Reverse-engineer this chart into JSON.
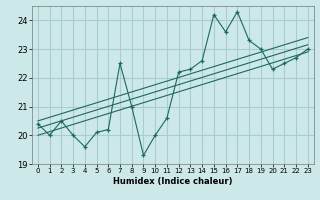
{
  "title": "",
  "xlabel": "Humidex (Indice chaleur)",
  "ylabel": "",
  "bg_color": "#cce8e8",
  "grid_color": "#aacccc",
  "line_color": "#1a6b5a",
  "xlim": [
    -0.5,
    23.5
  ],
  "ylim": [
    19.0,
    24.5
  ],
  "yticks": [
    19,
    20,
    21,
    22,
    23,
    24
  ],
  "xticks": [
    0,
    1,
    2,
    3,
    4,
    5,
    6,
    7,
    8,
    9,
    10,
    11,
    12,
    13,
    14,
    15,
    16,
    17,
    18,
    19,
    20,
    21,
    22,
    23
  ],
  "x_data": [
    0,
    1,
    2,
    3,
    4,
    5,
    6,
    7,
    8,
    9,
    10,
    11,
    12,
    13,
    14,
    15,
    16,
    17,
    18,
    19,
    20,
    21,
    22,
    23
  ],
  "y_data": [
    20.4,
    20.0,
    20.5,
    20.0,
    19.6,
    20.1,
    20.2,
    22.5,
    21.0,
    19.3,
    20.0,
    20.6,
    22.2,
    22.3,
    22.6,
    24.2,
    23.6,
    24.3,
    23.3,
    23.0,
    22.3,
    22.5,
    22.7,
    23.0
  ],
  "reg_lines": [
    {
      "x0": 0,
      "y0": 20.0,
      "x1": 23,
      "y1": 22.9
    },
    {
      "x0": 0,
      "y0": 20.25,
      "x1": 23,
      "y1": 23.15
    },
    {
      "x0": 0,
      "y0": 20.5,
      "x1": 23,
      "y1": 23.4
    }
  ]
}
